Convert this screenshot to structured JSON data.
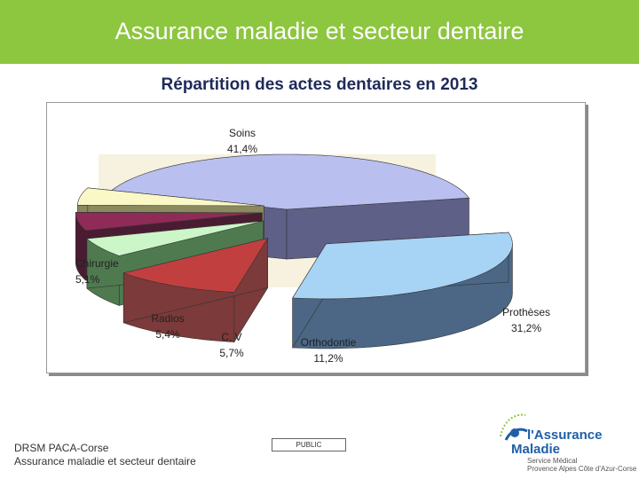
{
  "header": {
    "title": "Assurance maladie et secteur dentaire"
  },
  "colors": {
    "header_bg": "#8dc63f",
    "title_text": "#1f2a5a"
  },
  "chart_data": {
    "type": "pie",
    "title": "Répartition des actes dentaires en 2013",
    "style": "3d-exploded",
    "slices": [
      {
        "label": "Soins",
        "value_text": "41,4%",
        "value": 41.4,
        "color": "#b9bfef"
      },
      {
        "label": "Prothèses",
        "value_text": "31,2%",
        "value": 31.2,
        "color": "#a7d3f5"
      },
      {
        "label": "Orthodontie",
        "value_text": "11,2%",
        "value": 11.2,
        "color": "#c23f3f"
      },
      {
        "label": "C, V",
        "value_text": "5,7%",
        "value": 5.7,
        "color": "#ccf5c8"
      },
      {
        "label": "Radios",
        "value_text": "5,4%",
        "value": 5.4,
        "color": "#8e2b57"
      },
      {
        "label": "Chirurgie",
        "value_text": "5,1%",
        "value": 5.1,
        "color": "#fbf8c8"
      }
    ]
  },
  "footer": {
    "line1": "DRSM PACA-Corse",
    "line2": "Assurance maladie et secteur dentaire",
    "badge": "PUBLIC"
  },
  "logo": {
    "line1": "l'Assurance",
    "line2": "Maladie",
    "line3": "Service Médical",
    "line4": "Provence Alpes Côte d'Azur-Corse"
  }
}
